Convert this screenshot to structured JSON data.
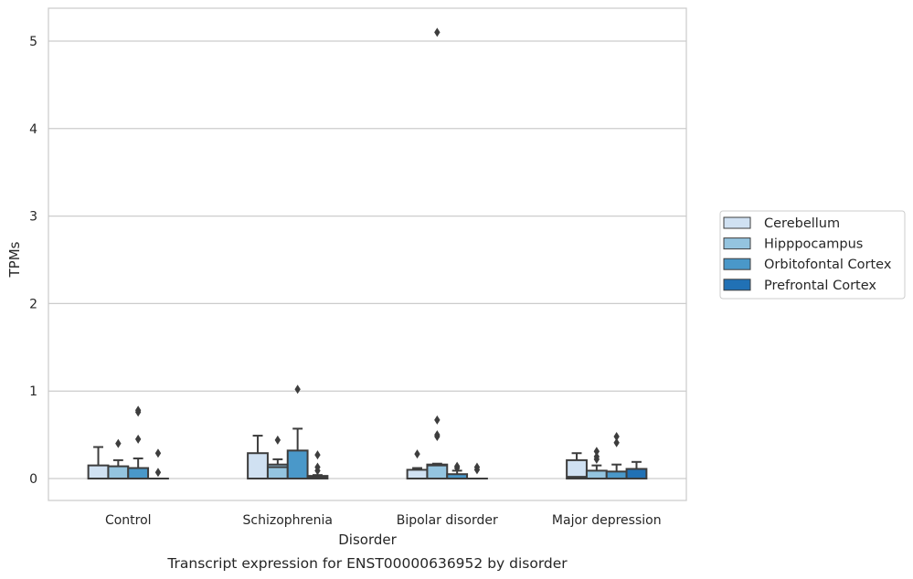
{
  "chart_data": {
    "type": "box",
    "title": "",
    "caption": "Transcript expression for ENST00000636952 by disorder",
    "xlabel": "Disorder",
    "ylabel": "TPMs",
    "ylim": [
      -0.25,
      5.38
    ],
    "yticks": [
      0,
      1,
      2,
      3,
      4,
      5
    ],
    "grid": "horizontal",
    "legend_position": "right",
    "categories": [
      "Control",
      "Schizophrenia",
      "Bipolar disorder",
      "Major depression"
    ],
    "series": [
      {
        "name": "Cerebellum",
        "color": "#d0e1f2",
        "boxes": [
          {
            "low": 0.0,
            "q1": 0.0,
            "median": 0.0,
            "q3": 0.15,
            "high": 0.36,
            "outliers": []
          },
          {
            "low": 0.0,
            "q1": 0.0,
            "median": 0.0,
            "q3": 0.29,
            "high": 0.49,
            "outliers": []
          },
          {
            "low": 0.0,
            "q1": 0.0,
            "median": 0.0,
            "q3": 0.1,
            "high": 0.12,
            "outliers": [
              0.28
            ]
          },
          {
            "low": 0.0,
            "q1": 0.0,
            "median": 0.02,
            "q3": 0.21,
            "high": 0.29,
            "outliers": []
          }
        ]
      },
      {
        "name": "Hipppocampus",
        "color": "#94c4df",
        "boxes": [
          {
            "low": 0.0,
            "q1": 0.0,
            "median": 0.0,
            "q3": 0.14,
            "high": 0.21,
            "outliers": [
              0.4
            ]
          },
          {
            "low": 0.0,
            "q1": 0.0,
            "median": 0.13,
            "q3": 0.16,
            "high": 0.22,
            "outliers": [
              0.44
            ]
          },
          {
            "low": 0.0,
            "q1": 0.0,
            "median": 0.15,
            "q3": 0.16,
            "high": 0.17,
            "outliers": [
              0.48,
              0.5,
              0.67,
              5.1
            ]
          },
          {
            "low": 0.0,
            "q1": 0.0,
            "median": 0.0,
            "q3": 0.09,
            "high": 0.15,
            "outliers": [
              0.22,
              0.25,
              0.31
            ]
          }
        ]
      },
      {
        "name": "Orbitofontal Cortex",
        "color": "#4a98c9",
        "boxes": [
          {
            "low": 0.0,
            "q1": 0.0,
            "median": 0.0,
            "q3": 0.12,
            "high": 0.23,
            "outliers": [
              0.45,
              0.76,
              0.78
            ]
          },
          {
            "low": 0.0,
            "q1": 0.0,
            "median": 0.0,
            "q3": 0.32,
            "high": 0.57,
            "outliers": [
              1.02
            ]
          },
          {
            "low": 0.0,
            "q1": 0.0,
            "median": 0.0,
            "q3": 0.05,
            "high": 0.09,
            "outliers": [
              0.12,
              0.14
            ]
          },
          {
            "low": 0.0,
            "q1": 0.0,
            "median": 0.0,
            "q3": 0.08,
            "high": 0.16,
            "outliers": [
              0.41,
              0.48
            ]
          }
        ]
      },
      {
        "name": "Prefrontal Cortex",
        "color": "#2171b5",
        "boxes": [
          {
            "low": 0.0,
            "q1": 0.0,
            "median": 0.0,
            "q3": 0.0,
            "high": 0.0,
            "outliers": [
              0.07,
              0.29
            ]
          },
          {
            "low": 0.0,
            "q1": 0.0,
            "median": 0.01,
            "q3": 0.03,
            "high": 0.04,
            "outliers": [
              0.09,
              0.13,
              0.27
            ]
          },
          {
            "low": 0.0,
            "q1": 0.0,
            "median": 0.0,
            "q3": 0.0,
            "high": 0.0,
            "outliers": [
              0.1,
              0.13
            ]
          },
          {
            "low": 0.0,
            "q1": 0.0,
            "median": 0.0,
            "q3": 0.11,
            "high": 0.19,
            "outliers": []
          }
        ]
      }
    ]
  }
}
